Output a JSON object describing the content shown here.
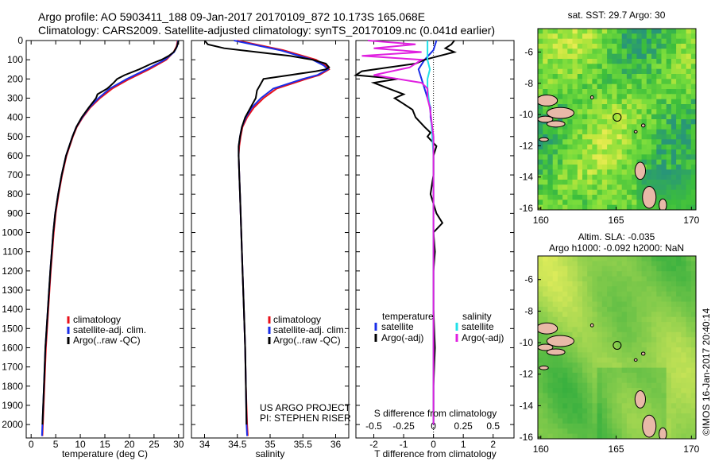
{
  "header": {
    "line1": "Argo profile: AO 5903411_188 09-Jan-2017 20170109_872 10.173S 165.068E",
    "line2": "Climatology: CARS2009. Satellite-adjusted climatology: synTS_20170109.nc (0.041d earlier)"
  },
  "sidebar_stamp": "©IMOS 16-Jan-2017 20:40:14",
  "colors": {
    "climatology": "#e8101a",
    "satellite": "#1a2ee8",
    "argo": "#000000",
    "salinity_sat": "#22e0e8",
    "salinity_argo": "#e020e0"
  },
  "chart_data": [
    {
      "type": "line",
      "panel": "temperature",
      "xlabel": "temperature (deg C)",
      "xlim": [
        -1,
        31
      ],
      "xticks": [
        0,
        5,
        10,
        15,
        20,
        25,
        30
      ],
      "ylim": [
        0,
        2070
      ],
      "yticks": [
        0,
        100,
        200,
        300,
        400,
        500,
        600,
        700,
        800,
        900,
        1000,
        1100,
        1200,
        1300,
        1400,
        1500,
        1600,
        1700,
        1800,
        1900,
        2000
      ],
      "legend": [
        "climatology",
        "satellite-adj. clim.",
        "Argo(..raw -QC)"
      ],
      "series": [
        {
          "name": "climatology",
          "color": "#e8101a",
          "depth": [
            0,
            30,
            60,
            100,
            150,
            200,
            250,
            300,
            350,
            400,
            450,
            500,
            600,
            700,
            800,
            900,
            1000,
            1200,
            1400,
            1600,
            1800,
            2000,
            2060
          ],
          "values": [
            29.8,
            29.6,
            29.0,
            27.5,
            24.0,
            20.0,
            16.5,
            14.0,
            12.0,
            10.5,
            9.3,
            8.5,
            7.2,
            6.3,
            5.6,
            5.0,
            4.6,
            4.0,
            3.5,
            3.0,
            2.7,
            2.4,
            2.3
          ]
        },
        {
          "name": "satellite-adj. clim.",
          "color": "#1a2ee8",
          "depth": [
            0,
            30,
            60,
            100,
            150,
            200,
            250,
            300,
            350,
            400,
            450,
            500,
            600,
            700,
            800,
            900,
            1000,
            1200,
            1400,
            1600,
            1800,
            2000,
            2060
          ],
          "values": [
            29.9,
            29.7,
            29.1,
            27.2,
            23.5,
            19.5,
            16.0,
            13.7,
            11.8,
            10.4,
            9.2,
            8.4,
            7.1,
            6.2,
            5.5,
            4.9,
            4.5,
            3.9,
            3.4,
            2.9,
            2.6,
            2.3,
            2.2
          ]
        },
        {
          "name": "Argo(..raw -QC)",
          "color": "#000000",
          "depth": [
            0,
            20,
            40,
            60,
            80,
            100,
            120,
            150,
            180,
            200,
            220,
            250,
            280,
            300,
            350,
            400,
            450,
            500,
            600,
            700,
            800,
            900,
            1000,
            1200,
            1400,
            1600,
            1800,
            2000
          ],
          "values": [
            30.0,
            29.8,
            29.5,
            29.0,
            28.0,
            26.5,
            24.5,
            22.0,
            19.0,
            17.5,
            16.8,
            15.5,
            13.5,
            13.2,
            11.7,
            10.3,
            9.2,
            8.4,
            7.1,
            6.2,
            5.5,
            4.9,
            4.5,
            3.9,
            3.4,
            2.9,
            2.6,
            2.3
          ]
        }
      ]
    },
    {
      "type": "line",
      "panel": "salinity",
      "xlabel": "salinity",
      "xlim": [
        33.8,
        36.2
      ],
      "xticks": [
        34,
        34.5,
        35,
        35.5,
        36
      ],
      "xticklabels": [
        "34",
        "34.5",
        "35",
        "35.5",
        "36"
      ],
      "ylim": [
        0,
        2070
      ],
      "legend": [
        "climatology",
        "satellite-adj. clim.",
        "Argo(..raw -QC)"
      ],
      "annotation": [
        "US ARGO PROJECT",
        "PI: STEPHEN RISER"
      ],
      "series": [
        {
          "name": "climatology",
          "color": "#e8101a",
          "depth": [
            0,
            50,
            100,
            130,
            150,
            180,
            200,
            250,
            300,
            350,
            400,
            450,
            500,
            550,
            600,
            700,
            800,
            1000,
            1200,
            1400,
            1600,
            1800,
            2000,
            2060
          ],
          "values": [
            34.5,
            35.2,
            35.7,
            35.85,
            35.9,
            35.75,
            35.55,
            35.1,
            34.9,
            34.75,
            34.65,
            34.58,
            34.55,
            34.53,
            34.52,
            34.53,
            34.54,
            34.56,
            34.58,
            34.6,
            34.62,
            34.63,
            34.65,
            34.66
          ]
        },
        {
          "name": "satellite-adj. clim.",
          "color": "#1a2ee8",
          "depth": [
            0,
            50,
            100,
            130,
            150,
            180,
            200,
            250,
            300,
            350,
            400,
            450,
            500,
            550,
            600,
            700,
            800,
            1000,
            1200,
            1400,
            1600,
            1800,
            2000,
            2060
          ],
          "values": [
            34.45,
            35.15,
            35.65,
            35.82,
            35.88,
            35.72,
            35.5,
            35.05,
            34.86,
            34.72,
            34.63,
            34.57,
            34.54,
            34.52,
            34.52,
            34.53,
            34.54,
            34.56,
            34.58,
            34.6,
            34.62,
            34.63,
            34.64,
            34.65
          ]
        },
        {
          "name": "Argo(..raw -QC)",
          "color": "#000000",
          "depth": [
            0,
            20,
            40,
            60,
            80,
            100,
            120,
            140,
            150,
            160,
            180,
            200,
            230,
            260,
            300,
            350,
            400,
            450,
            500,
            550,
            600,
            700,
            800,
            1000,
            1200,
            1400,
            1600,
            1800,
            2000
          ],
          "values": [
            34.0,
            34.05,
            34.3,
            34.8,
            35.3,
            35.65,
            35.85,
            35.9,
            35.85,
            35.7,
            35.3,
            34.9,
            34.85,
            34.8,
            34.78,
            34.7,
            34.62,
            34.57,
            34.54,
            34.52,
            34.52,
            34.53,
            34.54,
            34.56,
            34.58,
            34.6,
            34.62,
            34.63,
            34.64
          ]
        }
      ]
    },
    {
      "type": "line",
      "panel": "difference",
      "xlabel": "T difference from climatology",
      "xlabel_top": "S difference from climatology",
      "xlim": [
        -2.6,
        2.7
      ],
      "xticks": [
        -2,
        -1,
        0,
        1,
        2
      ],
      "s_xticks": [
        -0.5,
        -0.25,
        0,
        0.25,
        0.5
      ],
      "s_xticklabels": [
        "-0.5",
        "-0.25",
        "0",
        "0.25",
        "0.5"
      ],
      "ylim": [
        0,
        2070
      ],
      "legend_temperature_title": "temperature",
      "legend_salinity_title": "salinity",
      "legend_temperature": [
        "satellite",
        "Argo(-adj)"
      ],
      "legend_salinity": [
        "satellite",
        "Argo(-adj)"
      ],
      "series": [
        {
          "name": "temperature satellite",
          "color": "#1a2ee8",
          "depth": [
            0,
            50,
            100,
            150,
            200,
            250,
            300,
            350,
            400,
            500,
            600,
            800,
            1000,
            1500,
            2000
          ],
          "values": [
            0.1,
            0.0,
            -0.3,
            -0.5,
            -0.4,
            -0.3,
            -0.2,
            -0.1,
            -0.1,
            0.0,
            0.0,
            0.0,
            0.0,
            0.0,
            0.0
          ]
        },
        {
          "name": "temperature Argo(-adj)",
          "color": "#000000",
          "depth": [
            0,
            20,
            40,
            60,
            80,
            100,
            120,
            140,
            160,
            180,
            200,
            220,
            250,
            280,
            300,
            330,
            360,
            400,
            450,
            480,
            500,
            550,
            600,
            700,
            800,
            900,
            950,
            1000,
            1100,
            1200,
            1400,
            1600,
            1800,
            2000
          ],
          "values": [
            0.7,
            0.6,
            0.4,
            0.7,
            0.2,
            -0.3,
            -0.6,
            -1.5,
            -2.4,
            -2.6,
            -1.2,
            -2.0,
            -1.5,
            -1.0,
            -1.3,
            -1.0,
            -0.7,
            -0.6,
            -0.3,
            -0.1,
            -0.2,
            0.1,
            0.0,
            0.0,
            -0.1,
            0.1,
            0.3,
            0.0,
            0.05,
            0.0,
            0.0,
            0.05,
            0.0,
            0.0
          ]
        },
        {
          "name": "salinity satellite",
          "color": "#22e0e8",
          "depth": [
            0,
            50,
            100,
            150,
            200,
            250,
            300,
            350,
            400,
            500,
            600,
            800,
            1000,
            1500,
            2000
          ],
          "s_values": [
            -0.05,
            -0.05,
            -0.05,
            -0.03,
            -0.05,
            -0.05,
            -0.04,
            -0.03,
            -0.02,
            -0.01,
            0.0,
            0.0,
            0.0,
            0.0,
            0.0
          ]
        },
        {
          "name": "salinity Argo(-adj)",
          "color": "#e020e0",
          "depth": [
            0,
            20,
            40,
            60,
            80,
            100,
            120,
            140,
            160,
            180,
            200,
            220,
            250,
            300,
            350,
            400,
            500,
            600,
            800,
            1000,
            1500,
            2000
          ],
          "s_values": [
            -0.55,
            -0.15,
            -0.5,
            -0.1,
            -0.6,
            -0.1,
            -0.15,
            -0.2,
            -0.35,
            -0.5,
            -0.3,
            -0.1,
            -0.05,
            -0.05,
            -0.03,
            -0.02,
            0.0,
            0.0,
            0.0,
            0.0,
            0.0,
            0.0
          ]
        }
      ]
    },
    {
      "type": "heatmap",
      "panel": "sst-map",
      "title": "sat. SST: 29.7 Argo: 30",
      "xticks": [
        160,
        165,
        170
      ],
      "yticks": [
        -6,
        -8,
        -10,
        -12,
        -14,
        -16
      ],
      "xlim": [
        159.8,
        170.3
      ],
      "ylim": [
        -16.1,
        -4.5
      ],
      "argo_position": [
        165.068,
        -10.173
      ]
    },
    {
      "type": "heatmap",
      "panel": "sla-map",
      "title_line1": "Altim. SLA: -0.035",
      "title_line2": "Argo h1000: -0.092 h2000: NaN",
      "xticks": [
        160,
        165,
        170
      ],
      "yticks": [
        -6,
        -8,
        -10,
        -12,
        -14,
        -16
      ],
      "xlim": [
        159.8,
        170.3
      ],
      "ylim": [
        -16.1,
        -4.5
      ],
      "argo_position": [
        165.068,
        -10.173
      ]
    }
  ]
}
